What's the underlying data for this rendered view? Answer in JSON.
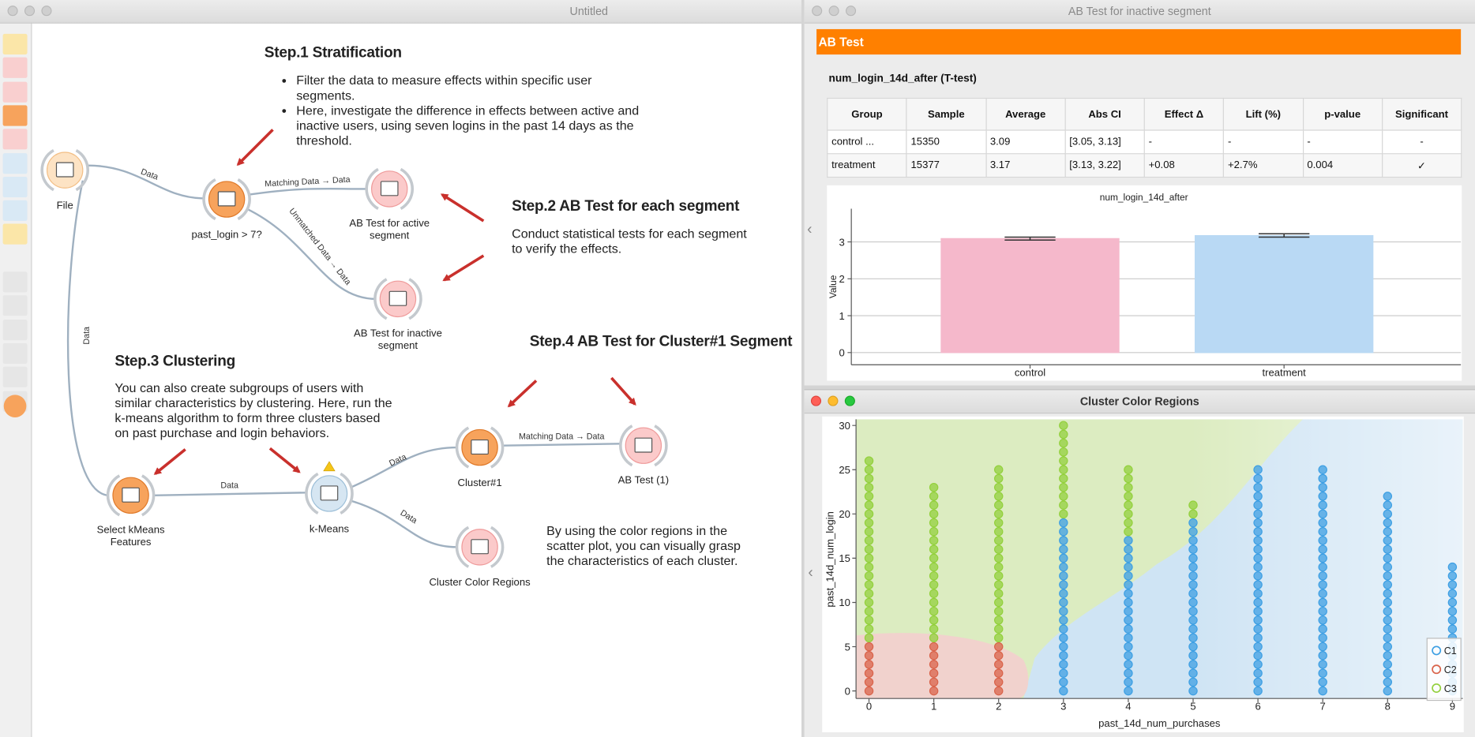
{
  "windows": {
    "workflow_title": "Untitled",
    "ab_test_title": "AB Test for inactive segment",
    "scatter_title": "Cluster Color Regions"
  },
  "workflow": {
    "nodes": [
      {
        "label": "File"
      },
      {
        "label": "past_login > 7?"
      },
      {
        "label": "AB Test for active segment"
      },
      {
        "label": "AB Test for inactive segment"
      },
      {
        "label": "Select kMeans Features"
      },
      {
        "label": "k-Means"
      },
      {
        "label": "Cluster#1"
      },
      {
        "label": "AB Test (1)"
      },
      {
        "label": "Cluster Color Regions"
      }
    ],
    "links": [
      {
        "label": "Data"
      },
      {
        "label": "Matching Data → Data"
      },
      {
        "label": "Unmatched Data → Data"
      },
      {
        "label": "Data"
      },
      {
        "label": "Data"
      },
      {
        "label": "Data"
      },
      {
        "label": "Matching Data → Data"
      },
      {
        "label": "Data"
      }
    ],
    "annotations": [
      {
        "title": "Step.1 Stratification",
        "bullets": [
          "Filter the data to measure effects within specific user segments.",
          "Here, investigate the difference in effects between active and inactive users, using seven logins in the past 14 days as the threshold."
        ]
      },
      {
        "title": "Step.2 AB Test for each segment",
        "text": "Conduct statistical tests for each segment to verify the effects."
      },
      {
        "title": "Step.3 Clustering",
        "text": "You can also create subgroups of users with similar characteristics by clustering. Here, run the k-means algorithm to form three clusters based on past purchase and login behaviors."
      },
      {
        "title": "Step.4 AB Test for Cluster#1 Segment"
      },
      {
        "text": "By using the color regions in the scatter plot, you can visually grasp the characteristics of each cluster."
      }
    ]
  },
  "ab_test": {
    "header": "AB Test",
    "subtitle": "num_login_14d_after (T-test)",
    "table": {
      "columns": [
        "Group",
        "Sample",
        "Average",
        "Abs CI",
        "Effect Δ",
        "Lift (%)",
        "p-value",
        "Significant"
      ],
      "rows": [
        [
          "control ...",
          "15350",
          "3.09",
          "[3.05, 3.13]",
          "-",
          "-",
          "-",
          "-"
        ],
        [
          "treatment",
          "15377",
          "3.17",
          "[3.13, 3.22]",
          "+0.08",
          "+2.7%",
          "0.004",
          "✓"
        ]
      ]
    }
  },
  "chart_data": [
    {
      "type": "bar",
      "title": "num_login_14d_after",
      "y_label": "Value",
      "categories": [
        "control",
        "treatment"
      ],
      "values": [
        3.09,
        3.17
      ],
      "ci_low": [
        3.05,
        3.13
      ],
      "ci_high": [
        3.13,
        3.22
      ],
      "colors": [
        "#f5b8cb",
        "#b9d9f4"
      ],
      "ylim": [
        -0.33,
        3.9
      ],
      "yticks": [
        0,
        1,
        2,
        3
      ],
      "grid": true
    },
    {
      "type": "scatter",
      "x_label": "past_14d_num_purchases",
      "y_label": "past_14d_num_login",
      "xlim": [
        -0.2,
        9.16
      ],
      "ylim": [
        -0.85,
        30.7
      ],
      "xticks": [
        0,
        1,
        2,
        3,
        4,
        5,
        6,
        7,
        8,
        9
      ],
      "yticks": [
        0,
        5,
        10,
        15,
        20,
        25,
        30
      ],
      "legend": "lower right",
      "series": [
        {
          "name": "C1",
          "color": "#3d9fe3",
          "x": [
            3,
            3,
            3,
            3,
            3,
            3,
            3,
            3,
            3,
            3,
            3,
            3,
            3,
            3,
            3,
            3,
            3,
            3,
            3,
            3,
            4,
            4,
            4,
            4,
            4,
            4,
            4,
            4,
            4,
            4,
            4,
            4,
            4,
            4,
            4,
            4,
            4,
            4,
            5,
            5,
            5,
            5,
            5,
            5,
            5,
            5,
            5,
            5,
            5,
            5,
            5,
            5,
            5,
            5,
            5,
            5,
            5,
            5,
            6,
            6,
            6,
            6,
            6,
            6,
            6,
            6,
            6,
            6,
            6,
            6,
            6,
            6,
            6,
            6,
            6,
            6,
            6,
            6,
            6,
            6,
            6,
            6,
            6,
            6,
            7,
            7,
            7,
            7,
            7,
            7,
            7,
            7,
            7,
            7,
            7,
            7,
            7,
            7,
            7,
            7,
            7,
            7,
            7,
            7,
            7,
            7,
            7,
            7,
            7,
            7,
            8,
            8,
            8,
            8,
            8,
            8,
            8,
            8,
            8,
            8,
            8,
            8,
            8,
            8,
            8,
            8,
            8,
            8,
            8,
            8,
            8,
            8,
            8,
            9,
            9,
            9,
            9,
            9,
            9,
            9,
            9,
            9,
            9,
            9,
            9,
            9,
            9,
            9
          ],
          "y": [
            0,
            1,
            2,
            3,
            4,
            5,
            6,
            7,
            8,
            9,
            10,
            11,
            12,
            13,
            14,
            15,
            16,
            17,
            18,
            19,
            0,
            1,
            2,
            3,
            4,
            5,
            6,
            7,
            8,
            9,
            10,
            11,
            12,
            13,
            14,
            15,
            16,
            17,
            0,
            1,
            2,
            3,
            4,
            5,
            6,
            7,
            8,
            9,
            10,
            11,
            12,
            13,
            14,
            15,
            16,
            17,
            18,
            19,
            0,
            1,
            2,
            3,
            4,
            5,
            6,
            7,
            8,
            9,
            10,
            11,
            12,
            13,
            14,
            15,
            16,
            17,
            18,
            19,
            20,
            21,
            22,
            23,
            24,
            25,
            0,
            1,
            2,
            3,
            4,
            5,
            6,
            7,
            8,
            9,
            10,
            11,
            12,
            13,
            14,
            15,
            16,
            17,
            18,
            19,
            20,
            21,
            22,
            23,
            24,
            25,
            0,
            1,
            2,
            3,
            4,
            5,
            6,
            7,
            8,
            9,
            10,
            11,
            12,
            13,
            14,
            15,
            16,
            17,
            18,
            19,
            20,
            21,
            22,
            0,
            1,
            2,
            3,
            4,
            5,
            6,
            7,
            8,
            9,
            10,
            11,
            12,
            13,
            14
          ]
        },
        {
          "name": "C2",
          "color": "#d9634a",
          "x": [
            0,
            0,
            0,
            0,
            0,
            0,
            1,
            1,
            1,
            1,
            1,
            1,
            2,
            2,
            2,
            2,
            2,
            2
          ],
          "y": [
            0,
            1,
            2,
            3,
            4,
            5,
            0,
            1,
            2,
            3,
            4,
            5,
            0,
            1,
            2,
            3,
            4,
            5
          ]
        },
        {
          "name": "C3",
          "color": "#93d03c",
          "x": [
            0,
            0,
            0,
            0,
            0,
            0,
            0,
            0,
            0,
            0,
            0,
            0,
            0,
            0,
            0,
            0,
            0,
            0,
            0,
            0,
            0,
            1,
            1,
            1,
            1,
            1,
            1,
            1,
            1,
            1,
            1,
            1,
            1,
            1,
            1,
            1,
            1,
            1,
            1,
            2,
            2,
            2,
            2,
            2,
            2,
            2,
            2,
            2,
            2,
            2,
            2,
            2,
            2,
            2,
            2,
            2,
            2,
            2,
            2,
            3,
            3,
            3,
            3,
            3,
            3,
            3,
            3,
            3,
            3,
            3,
            4,
            4,
            4,
            4,
            4,
            4,
            4,
            4,
            5,
            5
          ],
          "y": [
            6,
            7,
            8,
            9,
            10,
            11,
            12,
            13,
            14,
            15,
            16,
            17,
            18,
            19,
            20,
            21,
            22,
            23,
            24,
            25,
            26,
            6,
            7,
            8,
            9,
            10,
            11,
            12,
            13,
            14,
            15,
            16,
            17,
            18,
            19,
            20,
            21,
            22,
            23,
            6,
            7,
            8,
            9,
            10,
            11,
            12,
            13,
            14,
            15,
            16,
            17,
            18,
            19,
            20,
            21,
            22,
            23,
            24,
            25,
            20,
            21,
            22,
            23,
            24,
            25,
            26,
            27,
            28,
            29,
            30,
            18,
            19,
            20,
            21,
            22,
            23,
            24,
            25,
            20,
            21
          ]
        }
      ]
    }
  ]
}
